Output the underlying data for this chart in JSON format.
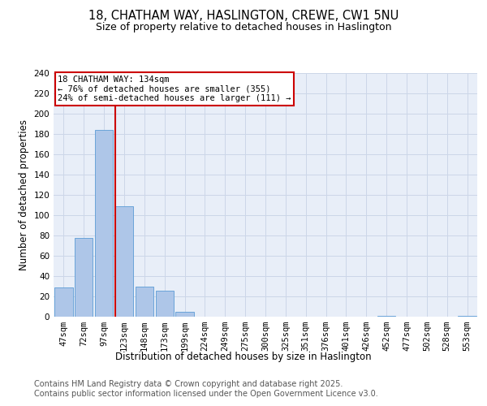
{
  "title_line1": "18, CHATHAM WAY, HASLINGTON, CREWE, CW1 5NU",
  "title_line2": "Size of property relative to detached houses in Haslington",
  "xlabel": "Distribution of detached houses by size in Haslington",
  "ylabel": "Number of detached properties",
  "bar_labels": [
    "47sqm",
    "72sqm",
    "97sqm",
    "123sqm",
    "148sqm",
    "173sqm",
    "199sqm",
    "224sqm",
    "249sqm",
    "275sqm",
    "300sqm",
    "325sqm",
    "351sqm",
    "376sqm",
    "401sqm",
    "426sqm",
    "452sqm",
    "477sqm",
    "502sqm",
    "528sqm",
    "553sqm"
  ],
  "bar_values": [
    29,
    78,
    184,
    109,
    30,
    26,
    5,
    0,
    0,
    0,
    0,
    0,
    0,
    0,
    0,
    0,
    1,
    0,
    0,
    0,
    1
  ],
  "bar_color": "#aec6e8",
  "bar_edge_color": "#5b9bd5",
  "annotation_text": "18 CHATHAM WAY: 134sqm\n← 76% of detached houses are smaller (355)\n24% of semi-detached houses are larger (111) →",
  "annotation_box_color": "#ffffff",
  "annotation_edge_color": "#cc0000",
  "vline_color": "#cc0000",
  "ylim": [
    0,
    240
  ],
  "yticks": [
    0,
    20,
    40,
    60,
    80,
    100,
    120,
    140,
    160,
    180,
    200,
    220,
    240
  ],
  "grid_color": "#ccd6e8",
  "background_color": "#e8eef8",
  "footer_line1": "Contains HM Land Registry data © Crown copyright and database right 2025.",
  "footer_line2": "Contains public sector information licensed under the Open Government Licence v3.0.",
  "title_fontsize": 10.5,
  "subtitle_fontsize": 9,
  "axis_label_fontsize": 8.5,
  "tick_fontsize": 7.5,
  "footer_fontsize": 7,
  "vline_bar_index": 3
}
